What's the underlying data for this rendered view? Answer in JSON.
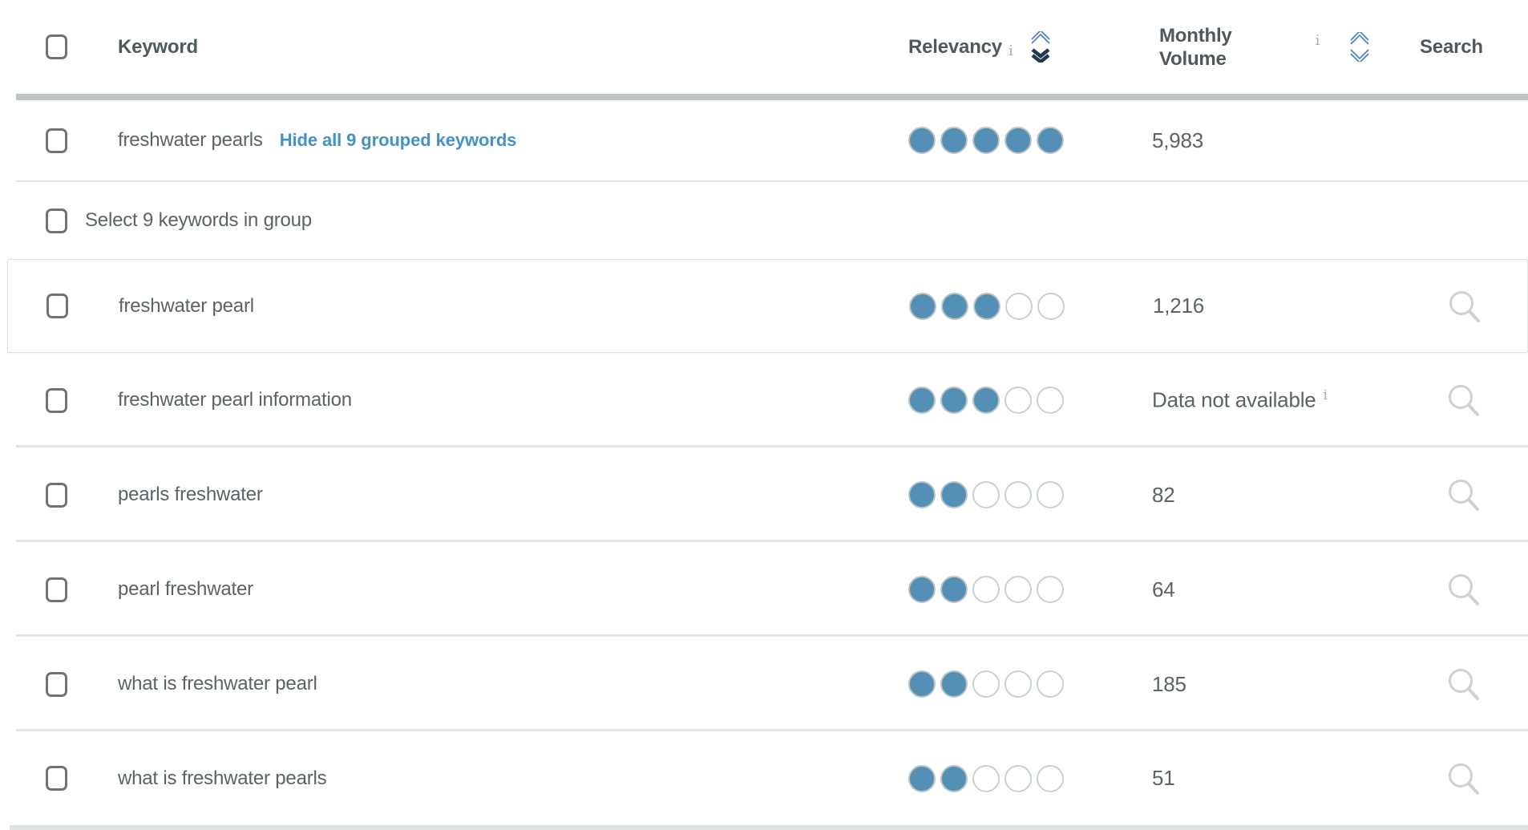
{
  "table": {
    "header": {
      "keyword_label": "Keyword",
      "relevancy_label": "Relevancy",
      "monthly_volume_line1": "Monthly",
      "monthly_volume_line2": "Volume",
      "search_label": "Search",
      "info_icon_glyph": "i",
      "sort": {
        "relevancy": "desc",
        "monthly_volume": "none"
      }
    },
    "relevancy_scale_max": 5,
    "group_row": {
      "keyword": "freshwater pearls",
      "link_label": "Hide all 9 grouped keywords",
      "relevancy": 5,
      "monthly_volume": "5,983"
    },
    "select_row": {
      "label": "Select 9 keywords in group"
    },
    "rows": [
      {
        "keyword": "freshwater pearl",
        "relevancy": 3,
        "monthly_volume": "1,216",
        "highlighted": true,
        "volume_info": false
      },
      {
        "keyword": "freshwater pearl information",
        "relevancy": 3,
        "monthly_volume": "Data not available",
        "highlighted": false,
        "volume_info": true
      },
      {
        "keyword": "pearls freshwater",
        "relevancy": 2,
        "monthly_volume": "82",
        "highlighted": false,
        "volume_info": false
      },
      {
        "keyword": "pearl freshwater",
        "relevancy": 2,
        "monthly_volume": "64",
        "highlighted": false,
        "volume_info": false
      },
      {
        "keyword": "what is freshwater pearl",
        "relevancy": 2,
        "monthly_volume": "185",
        "highlighted": false,
        "volume_info": false
      },
      {
        "keyword": "what is freshwater pearls",
        "relevancy": 2,
        "monthly_volume": "51",
        "highlighted": false,
        "volume_info": false
      }
    ]
  },
  "colors": {
    "link_blue": "#4590c6",
    "dot_filled_blue": "#5490b5",
    "chevron_light_blue": "#4d82ba",
    "chevron_dark_navy": "#21384d",
    "text_gray": "#5a6366",
    "divider_gray": "#bdc4c4"
  }
}
